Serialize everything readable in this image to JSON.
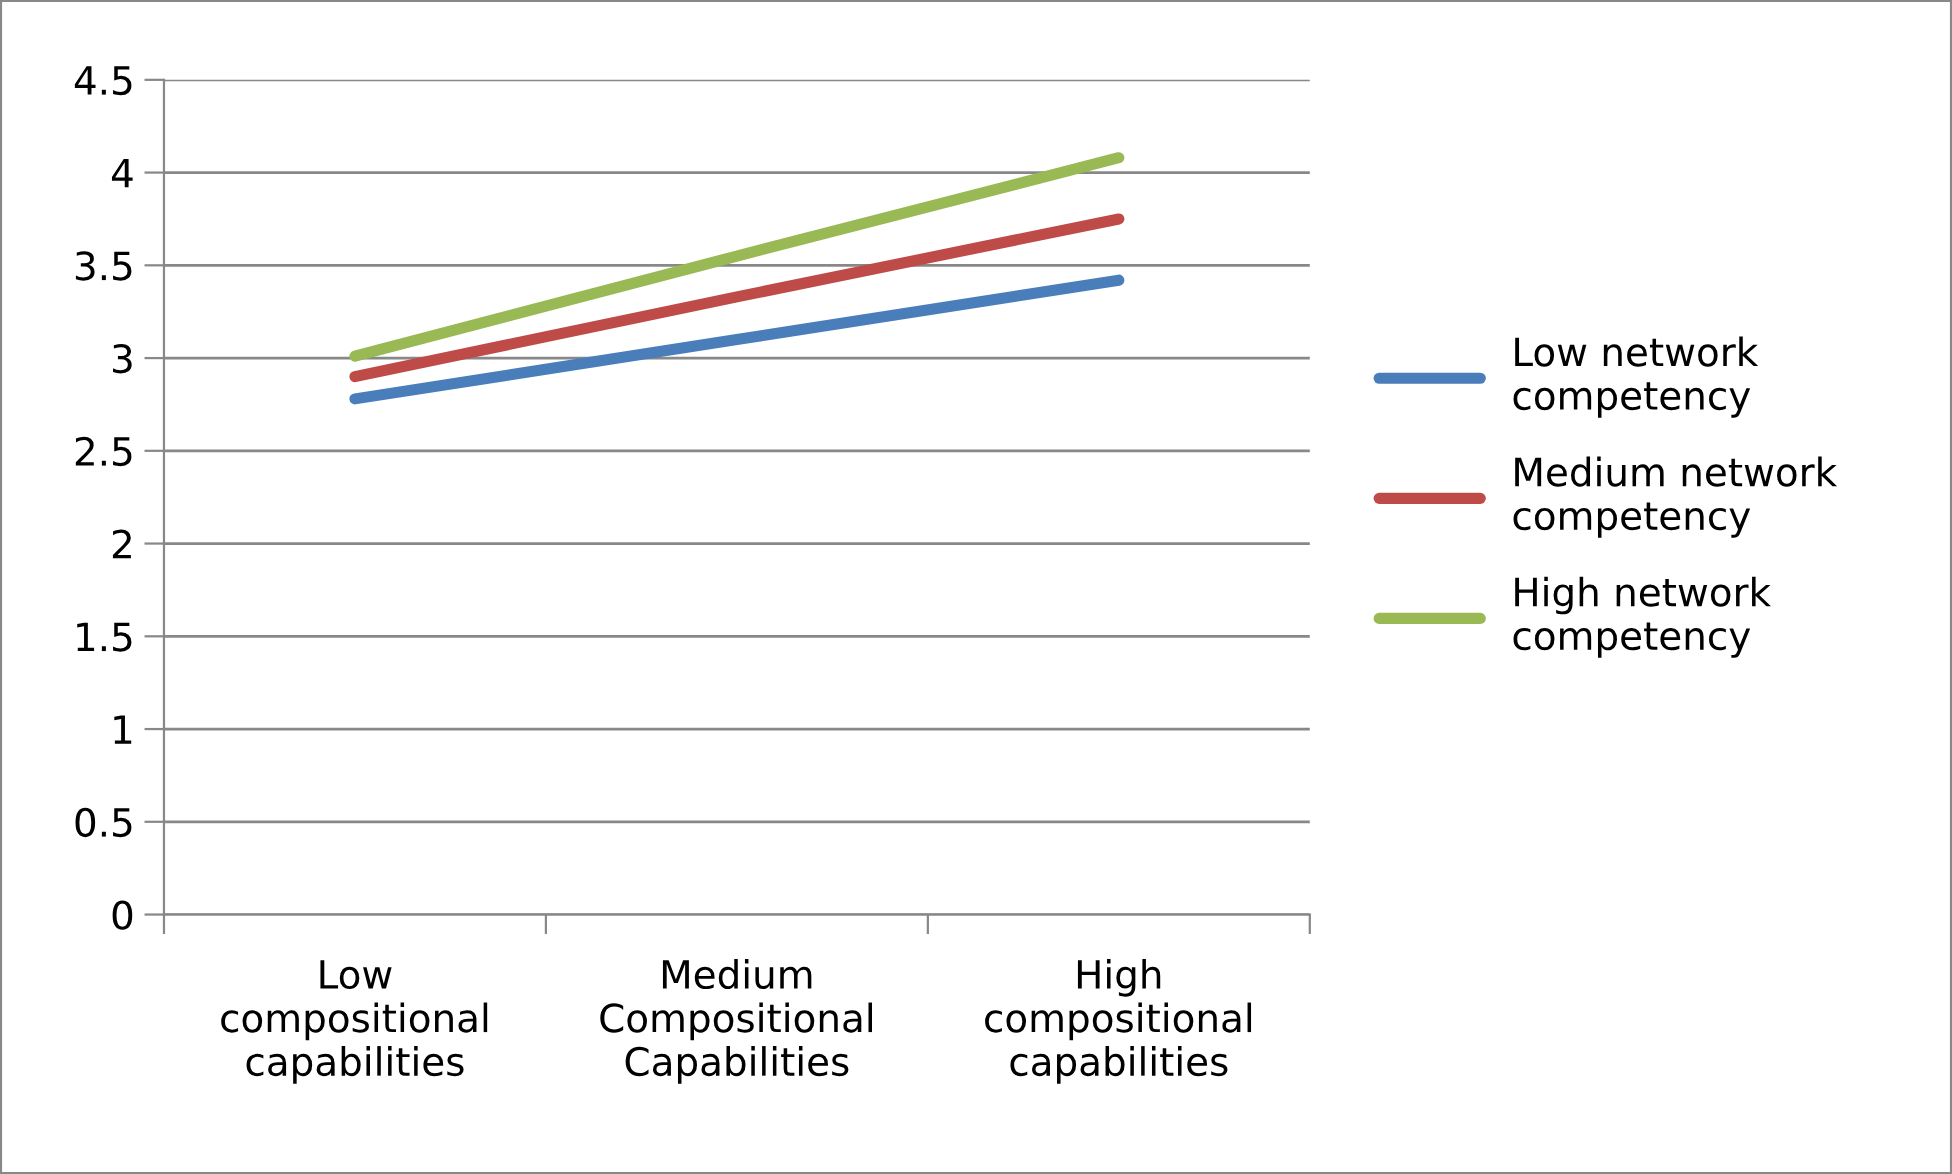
{
  "chart_data": {
    "type": "line",
    "categories": [
      "Low\ncompositional\ncapabilities",
      "Medium\nCompositional\nCapabilities",
      "High\ncompositional\ncapabilities"
    ],
    "series": [
      {
        "name": "Low network\ncompetency",
        "color": "#4a7ebb",
        "values": [
          2.78,
          3.1,
          3.42
        ]
      },
      {
        "name": "Medium network\ncompetency",
        "color": "#be4b48",
        "values": [
          2.9,
          3.33,
          3.75
        ]
      },
      {
        "name": "High network\ncompetency",
        "color": "#98b954",
        "values": [
          3.01,
          3.55,
          4.08
        ]
      }
    ],
    "ylim": [
      0,
      4.5
    ],
    "yticks": [
      0,
      0.5,
      1,
      1.5,
      2,
      2.5,
      3,
      3.5,
      4,
      4.5
    ],
    "grid": "y",
    "legend": "right",
    "marker": "none",
    "line_style": "solid"
  }
}
